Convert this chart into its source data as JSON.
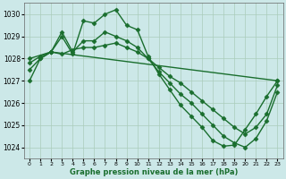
{
  "xlabel": "Graphe pression niveau de la mer (hPa)",
  "xlim": [
    -0.5,
    23.5
  ],
  "ylim": [
    1023.5,
    1030.5
  ],
  "yticks": [
    1024,
    1025,
    1026,
    1027,
    1028,
    1029,
    1030
  ],
  "xticks": [
    0,
    1,
    2,
    3,
    4,
    5,
    6,
    7,
    8,
    9,
    10,
    11,
    12,
    13,
    14,
    15,
    16,
    17,
    18,
    19,
    20,
    21,
    22,
    23
  ],
  "bg_color": "#cce8e8",
  "grid_color": "#aaccbb",
  "line_color": "#1a6e2e",
  "series": [
    {
      "x": [
        0,
        1,
        2,
        3,
        4,
        5,
        6,
        7,
        8,
        9,
        10,
        11,
        12,
        13,
        14,
        15,
        16,
        17,
        18,
        19,
        20,
        21,
        22,
        23
      ],
      "y": [
        1027.0,
        1028.0,
        1028.3,
        1029.0,
        1028.2,
        1029.7,
        1029.6,
        1030.0,
        1030.2,
        1029.5,
        1029.3,
        1028.1,
        1027.3,
        1026.6,
        1025.9,
        1025.4,
        1024.9,
        1024.3,
        1024.05,
        1024.1,
        1024.8,
        1025.5,
        1026.3,
        1027.0
      ]
    },
    {
      "x": [
        0,
        1,
        2,
        3,
        4,
        5,
        6,
        7,
        8,
        9,
        10,
        11,
        12,
        13,
        14,
        15,
        16,
        17,
        18,
        19,
        20,
        21,
        22,
        23
      ],
      "y": [
        1027.8,
        1028.1,
        1028.3,
        1028.2,
        1028.4,
        1028.5,
        1028.5,
        1028.6,
        1028.7,
        1028.5,
        1028.3,
        1028.0,
        1027.6,
        1027.2,
        1026.9,
        1026.5,
        1026.1,
        1025.7,
        1025.3,
        1024.9,
        1024.6,
        1024.9,
        1025.5,
        1026.8
      ]
    },
    {
      "x": [
        0,
        1,
        2,
        3,
        4,
        5,
        6,
        7,
        8,
        9,
        10,
        11,
        12,
        13,
        14,
        15,
        16,
        17,
        18,
        19,
        20,
        21,
        22,
        23
      ],
      "y": [
        1027.5,
        1028.0,
        1028.3,
        1029.2,
        1028.3,
        1028.8,
        1028.8,
        1029.2,
        1029.0,
        1028.8,
        1028.5,
        1028.0,
        1027.4,
        1026.9,
        1026.4,
        1026.0,
        1025.5,
        1025.0,
        1024.5,
        1024.2,
        1024.0,
        1024.4,
        1025.2,
        1026.5
      ]
    },
    {
      "x": [
        0,
        2,
        23
      ],
      "y": [
        1028.0,
        1028.3,
        1027.0
      ]
    }
  ],
  "marker": "D",
  "marker_size": 2.5,
  "linewidth": 1.0
}
